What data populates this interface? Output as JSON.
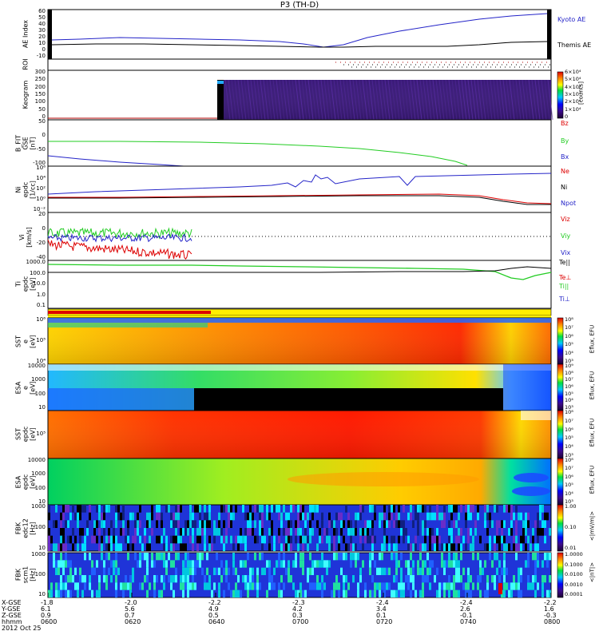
{
  "title": "P3 (TH-D)",
  "colors": {
    "blue": "#2424c8",
    "black": "#000000",
    "red": "#dd0000",
    "green": "#22cc22",
    "dark_red": "#b00000"
  },
  "chart_data": [
    {
      "type": "line",
      "ylabel": "AE Index",
      "ylim": [
        -10,
        60
      ],
      "yticks": [
        "60",
        "50",
        "40",
        "30",
        "20",
        "10",
        "0",
        "-10"
      ],
      "series": [
        {
          "name": "Kyoto AE",
          "color": "#2424c8"
        },
        {
          "name": "Themis AE",
          "color": "#000000"
        }
      ]
    },
    {
      "type": "line",
      "ylabel": "ROI",
      "yticks": [],
      "series": []
    },
    {
      "type": "heatmap",
      "ylabel": "Keogram",
      "ylim": [
        0,
        300
      ],
      "yticks": [
        "300",
        "250",
        "200",
        "150",
        "100",
        "50",
        "0"
      ],
      "colorbar": {
        "label": "[counts]",
        "ticks": [
          "6×10⁴",
          "5×10⁴",
          "4×10⁴",
          "3×10⁴",
          "2×10⁴",
          "1×10⁴",
          "0"
        ]
      }
    },
    {
      "type": "line",
      "ylabel": "B_FIT\nGSE\n[nT]",
      "ylim": [
        -100,
        50
      ],
      "yticks": [
        "50",
        "0",
        "-50",
        "-100"
      ],
      "series": [
        {
          "name": "Bz",
          "color": "#dd0000"
        },
        {
          "name": "By",
          "color": "#22cc22"
        },
        {
          "name": "Bx",
          "color": "#2424c8"
        }
      ]
    },
    {
      "type": "line",
      "ylabel": "Ni\nepdc\n[1/cc]",
      "yticks": [
        "10⁶",
        "10⁴",
        "10²",
        "10⁰",
        "10⁻²"
      ],
      "series": [
        {
          "name": "Ne",
          "color": "#dd0000"
        },
        {
          "name": "Ni",
          "color": "#000000"
        },
        {
          "name": "Npot",
          "color": "#2424c8"
        }
      ]
    },
    {
      "type": "line",
      "ylabel": "Vi\n[km/s]",
      "ylim": [
        -50,
        30
      ],
      "yticks": [
        "20",
        "0",
        "-20",
        "-40"
      ],
      "series": [
        {
          "name": "Viz",
          "color": "#dd0000"
        },
        {
          "name": "Viy",
          "color": "#22cc22"
        },
        {
          "name": "Vix",
          "color": "#2424c8"
        }
      ]
    },
    {
      "type": "line",
      "ylabel": "Ti\nepdc\n[eV]",
      "yticks": [
        "1000.0",
        "100.0",
        "10.0",
        "1.0",
        "0.1"
      ],
      "series": [
        {
          "name": "Te||",
          "color": "#000000"
        },
        {
          "name": "Te⊥",
          "color": "#dd0000"
        },
        {
          "name": "Ti||",
          "color": "#22cc22"
        },
        {
          "name": "Ti⊥",
          "color": "#2424c8"
        }
      ]
    },
    {
      "type": "heatmap",
      "ylabel": "SST\ne\n[eV]",
      "yticks": [
        "10⁶",
        "10⁵",
        "10⁴"
      ],
      "colorbar": {
        "label": "Eflux, EFU",
        "ticks": [
          "10⁸",
          "10⁷",
          "10⁶",
          "10⁵",
          "10⁴",
          "10³"
        ]
      }
    },
    {
      "type": "heatmap",
      "ylabel": "ESA\ne\n[eV]",
      "yticks": [
        "10000",
        "1000",
        "100",
        "10"
      ],
      "colorbar": {
        "label": "Eflux, EFU",
        "ticks": [
          "10⁹",
          "10⁸",
          "10⁷",
          "10⁶",
          "10⁵",
          "10⁴",
          "10³"
        ]
      }
    },
    {
      "type": "heatmap",
      "ylabel": "SST\nepdc\n[eV]",
      "yticks": [
        "10⁵"
      ],
      "colorbar": {
        "label": "Eflux, EFU",
        "ticks": [
          "10⁸",
          "10⁷",
          "10⁶",
          "10⁵",
          "10⁴",
          "10³"
        ]
      }
    },
    {
      "type": "heatmap",
      "ylabel": "ESA\nepdc\n[eV]",
      "yticks": [
        "10000",
        "1000",
        "100",
        "10"
      ],
      "colorbar": {
        "label": "Eflux, EFU",
        "ticks": [
          "10⁸",
          "10⁷",
          "10⁶",
          "10⁵",
          "10⁴",
          "10³"
        ]
      }
    },
    {
      "type": "heatmap",
      "ylabel": "FBK\nedc12\n[Hz]",
      "yticks": [
        "1000",
        "100",
        "10"
      ],
      "colorbar": {
        "label": "<|mV/m|>",
        "ticks": [
          "1.00",
          "0.10",
          "0.01"
        ]
      }
    },
    {
      "type": "heatmap",
      "ylabel": "FBK\nscm1\n[Hz]",
      "yticks": [
        "1000",
        "100",
        "10"
      ],
      "colorbar": {
        "label": "<|nT|>",
        "ticks": [
          "1.0000",
          "0.1000",
          "0.0100",
          "0.0010",
          "0.0001"
        ]
      }
    }
  ],
  "xaxis": {
    "rows": [
      {
        "label": "X-GSE",
        "values": [
          "-1.8",
          "-2.0",
          "-2.2",
          "-2.3",
          "-2.4",
          "-2.4",
          "-2.2"
        ]
      },
      {
        "label": "Y-GSE",
        "values": [
          "6.1",
          "5.6",
          "4.9",
          "4.2",
          "3.4",
          "2.6",
          "1.6"
        ]
      },
      {
        "label": "Z-GSE",
        "values": [
          "0.9",
          "0.7",
          "0.5",
          "0.3",
          "0.1",
          "-0.1",
          "-0.3"
        ]
      },
      {
        "label": "hhmm",
        "values": [
          "0600",
          "0620",
          "0640",
          "0700",
          "0720",
          "0740",
          "0800"
        ]
      }
    ],
    "date": "2012 Oct 25"
  }
}
